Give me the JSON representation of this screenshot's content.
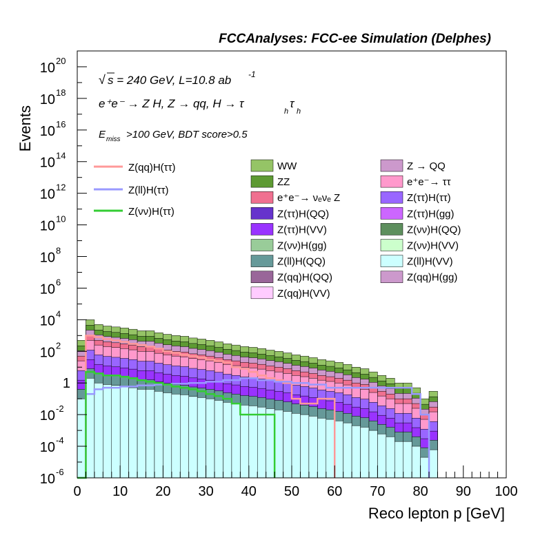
{
  "header": {
    "text": "FCCAnalyses: FCC-ee Simulation (Delphes)"
  },
  "annotations": {
    "sqrt_s": "s = 240 GeV, L=10.8 ab",
    "lumi_exp": "-1",
    "process": "e⁺e⁻ → Z H, Z → qq, H → τ",
    "process_sub": "h",
    "cut": "E",
    "cut_sub": "miss",
    "cut_rest": ">100 GeV, BDT score>0.5"
  },
  "colors": {
    "WW": "#95c466",
    "ZZ": "#5e9a33",
    "nunuZ": "#f07090",
    "ZQQ": "#cc99cc",
    "tautau": "#ff99cc",
    "zttHtt": "#9966ff",
    "zttHQQ": "#6633cc",
    "zttHgg": "#cc66ff",
    "zttHVV": "#9933ff",
    "zvvHQQ": "#5e8f5e",
    "zvvHgg": "#99cc99",
    "zvvHVV": "#ccffcc",
    "zllHQQ": "#669999",
    "zllHVV": "#ccffff",
    "zqqHQQ": "#996699",
    "zqqHgg": "#cc99cc",
    "zqqHVV": "#ffccff",
    "sig_qq": "#ff9999",
    "sig_ll": "#9999ff",
    "sig_vv": "#33cc33"
  },
  "chart_data": {
    "type": "area",
    "title": "",
    "xlabel": "Reco lepton p [GeV]",
    "ylabel": "Events",
    "xlim": [
      0,
      100
    ],
    "ylim": [
      1e-06,
      1e+21
    ],
    "log_y": true,
    "bin_width": 2,
    "x_ticks": [
      "0",
      "10",
      "20",
      "30",
      "40",
      "50",
      "60",
      "70",
      "80",
      "90",
      "100"
    ],
    "y_ticks": [
      {
        "base": "10",
        "exp": "-6"
      },
      {
        "base": "10",
        "exp": "-4"
      },
      {
        "base": "10",
        "exp": "-2"
      },
      {
        "base": "1",
        "exp": ""
      },
      {
        "base": "10",
        "exp": "2"
      },
      {
        "base": "10",
        "exp": "4"
      },
      {
        "base": "10",
        "exp": "6"
      },
      {
        "base": "10",
        "exp": "8"
      },
      {
        "base": "10",
        "exp": "10"
      },
      {
        "base": "10",
        "exp": "12"
      },
      {
        "base": "10",
        "exp": "14"
      },
      {
        "base": "10",
        "exp": "16"
      },
      {
        "base": "10",
        "exp": "18"
      },
      {
        "base": "10",
        "exp": "20"
      }
    ],
    "stack_outline": [
      {
        "x": 1,
        "y": 500
      },
      {
        "x": 3,
        "y": 10000
      },
      {
        "x": 5,
        "y": 5000
      },
      {
        "x": 7,
        "y": 4000
      },
      {
        "x": 9,
        "y": 3500
      },
      {
        "x": 11,
        "y": 3000
      },
      {
        "x": 13,
        "y": 2500
      },
      {
        "x": 15,
        "y": 2000
      },
      {
        "x": 17,
        "y": 2000
      },
      {
        "x": 19,
        "y": 1500
      },
      {
        "x": 21,
        "y": 1200
      },
      {
        "x": 23,
        "y": 1000
      },
      {
        "x": 25,
        "y": 900
      },
      {
        "x": 27,
        "y": 700
      },
      {
        "x": 29,
        "y": 600
      },
      {
        "x": 31,
        "y": 500
      },
      {
        "x": 33,
        "y": 400
      },
      {
        "x": 35,
        "y": 300
      },
      {
        "x": 37,
        "y": 250
      },
      {
        "x": 39,
        "y": 200
      },
      {
        "x": 41,
        "y": 180
      },
      {
        "x": 43,
        "y": 150
      },
      {
        "x": 45,
        "y": 120
      },
      {
        "x": 47,
        "y": 100
      },
      {
        "x": 49,
        "y": 80
      },
      {
        "x": 51,
        "y": 60
      },
      {
        "x": 53,
        "y": 50
      },
      {
        "x": 55,
        "y": 40
      },
      {
        "x": 57,
        "y": 30
      },
      {
        "x": 59,
        "y": 25
      },
      {
        "x": 61,
        "y": 20
      },
      {
        "x": 63,
        "y": 15
      },
      {
        "x": 65,
        "y": 10
      },
      {
        "x": 67,
        "y": 8
      },
      {
        "x": 69,
        "y": 5
      },
      {
        "x": 71,
        "y": 3
      },
      {
        "x": 73,
        "y": 2
      },
      {
        "x": 75,
        "y": 1
      },
      {
        "x": 77,
        "y": 1
      },
      {
        "x": 79,
        "y": 0.5
      },
      {
        "x": 81,
        "y": 0.1
      },
      {
        "x": 83,
        "y": 0.3
      }
    ],
    "stack_bands": [
      {
        "name": "WW",
        "color_key": "WW",
        "scale": 1.0
      },
      {
        "name": "ZZ",
        "color_key": "ZZ",
        "scale": 0.45
      },
      {
        "name": "Z → QQ",
        "color_key": "ZQQ",
        "scale": 0.22
      },
      {
        "name": "e⁺e⁻→ νₑνₑ Z",
        "color_key": "nunuZ",
        "scale": 0.1
      },
      {
        "name": "e⁺e⁻→ ττ",
        "color_key": "tautau",
        "scale": 0.05
      },
      {
        "name": "Z(ττ)H(ττ)",
        "color_key": "zttHtt",
        "scale": 0.012
      },
      {
        "name": "Z(ττ)H(VV)",
        "color_key": "zttHVV",
        "scale": 0.003
      },
      {
        "name": "Z(ll)H(QQ)",
        "color_key": "zllHQQ",
        "scale": 0.0008
      },
      {
        "name": "Z(ll)H(VV)",
        "color_key": "zllHVV",
        "scale": 0.0002
      }
    ],
    "signal_lines": [
      {
        "name": "Z(qq)H(ττ)",
        "color_key": "sig_qq",
        "x": [
          0,
          2,
          4,
          6,
          8,
          10,
          12,
          14,
          16,
          18,
          20,
          22,
          24,
          26,
          28,
          30,
          32,
          34,
          36,
          38,
          40,
          42,
          44,
          46,
          48,
          50,
          52,
          54,
          56,
          58,
          60
        ],
        "y": [
          1e-06,
          1000,
          800,
          600,
          500,
          400,
          300,
          250,
          200,
          150,
          100,
          80,
          60,
          50,
          40,
          30,
          25,
          20,
          10,
          8,
          5,
          3,
          2,
          1.5,
          1,
          0.1,
          0.05,
          0.05,
          0.1,
          0.1,
          1e-06
        ]
      },
      {
        "name": "Z(ll)H(ττ)",
        "color_key": "sig_ll",
        "x": [
          0,
          2,
          4,
          6,
          10,
          14,
          18,
          22,
          26,
          30,
          34,
          38,
          42,
          46,
          50,
          54,
          58,
          62,
          66,
          70,
          74,
          76,
          78,
          80,
          82
        ],
        "y": [
          1e-06,
          0.2,
          0.4,
          0.5,
          0.6,
          0.7,
          0.8,
          0.9,
          1,
          1.2,
          1.5,
          2,
          1.5,
          1.2,
          1,
          0.8,
          0.5,
          0.5,
          0.5,
          0.5,
          0.5,
          0.5,
          0.2,
          0.01,
          1e-06
        ]
      },
      {
        "name": "Z(νν)H(ττ)",
        "color_key": "sig_vv",
        "x": [
          0,
          2,
          4,
          6,
          8,
          10,
          12,
          14,
          16,
          18,
          20,
          22,
          24,
          26,
          28,
          30,
          32,
          34,
          36,
          38,
          40,
          42,
          44,
          46
        ],
        "y": [
          1e-06,
          5,
          4,
          3,
          3,
          2.5,
          2,
          1.5,
          1.2,
          1,
          0.8,
          0.6,
          0.5,
          0.4,
          0.3,
          0.2,
          0.15,
          0.1,
          0.05,
          0.01,
          0.01,
          0.01,
          0.01,
          1e-06
        ]
      }
    ],
    "legend_signals": [
      "Z(qq)H(ττ)",
      "Z(ll)H(ττ)",
      "Z(νν)H(ττ)"
    ],
    "legend_backgrounds": [
      {
        "label": "WW",
        "color_key": "WW"
      },
      {
        "label": "Z → QQ",
        "color_key": "ZQQ"
      },
      {
        "label": "ZZ",
        "color_key": "ZZ"
      },
      {
        "label": "e⁺e⁻→ ττ",
        "color_key": "tautau"
      },
      {
        "label": "e⁺e⁻→ νₑνₑ Z",
        "color_key": "nunuZ"
      },
      {
        "label": "Z(ττ)H(ττ)",
        "color_key": "zttHtt"
      },
      {
        "label": "Z(ττ)H(QQ)",
        "color_key": "zttHQQ"
      },
      {
        "label": "Z(ττ)H(gg)",
        "color_key": "zttHgg"
      },
      {
        "label": "Z(ττ)H(VV)",
        "color_key": "zttHVV"
      },
      {
        "label": "Z(νν)H(QQ)",
        "color_key": "zvvHQQ"
      },
      {
        "label": "Z(νν)H(gg)",
        "color_key": "zvvHgg"
      },
      {
        "label": "Z(νν)H(VV)",
        "color_key": "zvvHVV"
      },
      {
        "label": "Z(ll)H(QQ)",
        "color_key": "zllHQQ"
      },
      {
        "label": "Z(ll)H(VV)",
        "color_key": "zllHVV"
      },
      {
        "label": "Z(qq)H(QQ)",
        "color_key": "zqqHQQ"
      },
      {
        "label": "Z(qq)H(gg)",
        "color_key": "zqqHgg"
      },
      {
        "label": "Z(qq)H(VV)",
        "color_key": "zqqHVV"
      }
    ]
  }
}
